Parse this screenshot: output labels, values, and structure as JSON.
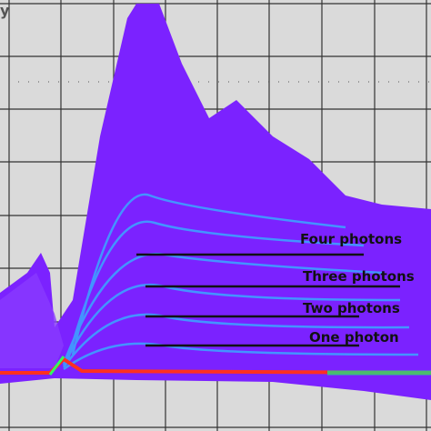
{
  "corner_label": "y",
  "annotations": [
    {
      "label": "Four photons"
    },
    {
      "label": "Three photons"
    },
    {
      "label": "Two photons"
    },
    {
      "label": "One photon"
    }
  ]
}
